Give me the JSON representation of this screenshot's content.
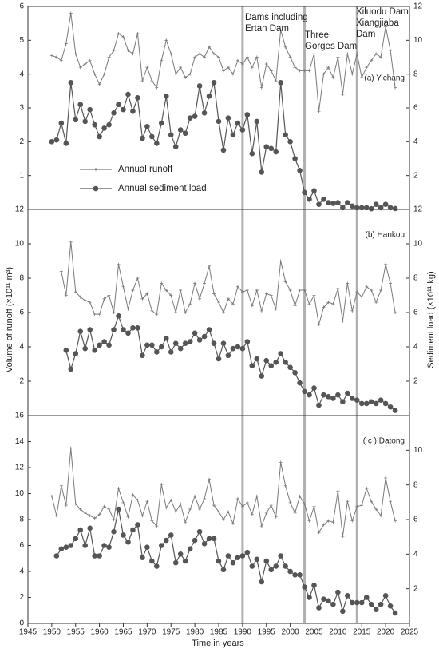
{
  "x_label": "Time in years",
  "y_label": "Volume of runoff (×10¹¹ m³)",
  "y2_label": "Sediment load (×10¹¹ kg)",
  "xlim": [
    1945,
    2025
  ],
  "xticks": [
    1945,
    1950,
    1955,
    1960,
    1965,
    1970,
    1975,
    1980,
    1985,
    1990,
    1995,
    2000,
    2005,
    2010,
    2015,
    2020,
    2025
  ],
  "dam_lines": [
    {
      "x": 1990,
      "label": [
        "Dams including",
        "Ertan Dam"
      ],
      "color": "#b0b0b0"
    },
    {
      "x": 2003,
      "label": [
        "Three",
        "Gorges Dam"
      ],
      "color": "#b0b0b0"
    },
    {
      "x": 2014,
      "label": [
        "Xiluodu Dam",
        "Xiangjiaba",
        "Dam"
      ],
      "color": "#b0b0b0"
    }
  ],
  "chart_data": [
    {
      "type": "line",
      "title": "(a) Yichang",
      "ylim": [
        0,
        6
      ],
      "yticks": [
        1,
        2,
        3,
        4,
        5,
        6
      ],
      "y2lim": [
        0,
        12
      ],
      "y2ticks": [
        2,
        4,
        6,
        8,
        10,
        12
      ],
      "legend": "lower-left",
      "series": [
        {
          "name": "Annual runoff",
          "color": "#7a7a7a",
          "marker": "plus",
          "x": [
            1950,
            1951,
            1952,
            1953,
            1954,
            1955,
            1956,
            1957,
            1958,
            1959,
            1960,
            1961,
            1962,
            1963,
            1964,
            1965,
            1966,
            1967,
            1968,
            1969,
            1970,
            1971,
            1972,
            1973,
            1974,
            1975,
            1976,
            1977,
            1978,
            1979,
            1980,
            1981,
            1982,
            1983,
            1984,
            1985,
            1986,
            1987,
            1988,
            1989,
            1990,
            1991,
            1992,
            1993,
            1994,
            1995,
            1996,
            1997,
            1998,
            1999,
            2000,
            2001,
            2002,
            2003,
            2004,
            2005,
            2006,
            2007,
            2008,
            2009,
            2010,
            2011,
            2012,
            2013,
            2014,
            2015,
            2016,
            2017,
            2018,
            2019,
            2020,
            2021,
            2022
          ],
          "values": [
            4.55,
            4.5,
            4.4,
            4.9,
            5.8,
            4.6,
            4.2,
            4.3,
            4.4,
            4.0,
            3.7,
            4.0,
            4.5,
            4.7,
            5.2,
            5.1,
            4.7,
            4.6,
            5.2,
            3.8,
            4.2,
            3.8,
            3.6,
            4.4,
            5.0,
            4.6,
            4.0,
            4.2,
            3.9,
            4.0,
            4.5,
            4.6,
            4.5,
            4.8,
            4.6,
            4.5,
            4.1,
            4.2,
            4.0,
            4.4,
            4.3,
            4.5,
            4.2,
            4.5,
            3.6,
            4.3,
            4.1,
            3.8,
            5.3,
            4.8,
            4.5,
            4.2,
            4.1,
            4.1,
            4.1,
            4.6,
            2.9,
            4.0,
            4.2,
            3.9,
            4.5,
            3.4,
            4.6,
            4.0,
            4.6,
            3.9,
            4.2,
            4.4,
            4.6,
            4.5,
            5.4,
            4.7,
            3.6
          ]
        },
        {
          "name": "Annual sediment load",
          "color": "#555555",
          "marker": "circle",
          "axis": "y2",
          "x": [
            1950,
            1951,
            1952,
            1953,
            1954,
            1955,
            1956,
            1957,
            1958,
            1959,
            1960,
            1961,
            1962,
            1963,
            1964,
            1965,
            1966,
            1967,
            1968,
            1969,
            1970,
            1971,
            1972,
            1973,
            1974,
            1975,
            1976,
            1977,
            1978,
            1979,
            1980,
            1981,
            1982,
            1983,
            1984,
            1985,
            1986,
            1987,
            1988,
            1989,
            1990,
            1991,
            1992,
            1993,
            1994,
            1995,
            1996,
            1997,
            1998,
            1999,
            2000,
            2001,
            2002,
            2003,
            2004,
            2005,
            2006,
            2007,
            2008,
            2009,
            2010,
            2011,
            2012,
            2013,
            2014,
            2015,
            2016,
            2017,
            2018,
            2019,
            2020,
            2021,
            2022
          ],
          "values": [
            4.0,
            4.1,
            5.1,
            3.9,
            7.5,
            5.3,
            6.2,
            5.2,
            5.9,
            5.0,
            4.3,
            4.8,
            5.0,
            5.7,
            6.2,
            5.9,
            6.8,
            5.8,
            6.6,
            4.2,
            4.9,
            4.3,
            3.9,
            5.1,
            6.7,
            4.4,
            3.7,
            4.7,
            4.5,
            5.4,
            5.5,
            7.3,
            5.7,
            6.7,
            7.5,
            5.2,
            3.5,
            5.4,
            4.4,
            5.1,
            4.7,
            5.6,
            3.3,
            5.2,
            2.2,
            3.7,
            3.6,
            3.4,
            7.5,
            4.4,
            4.0,
            3.0,
            2.3,
            1.0,
            0.6,
            1.1,
            0.3,
            0.6,
            0.4,
            0.35,
            0.4,
            0.1,
            0.4,
            0.2,
            0.1,
            0.1,
            0.1,
            0.04,
            0.3,
            0.1,
            0.3,
            0.1,
            0.05
          ]
        }
      ]
    },
    {
      "type": "line",
      "title": "(b) Hankou",
      "ylim": [
        0,
        12
      ],
      "yticks": [
        2,
        4,
        6,
        8,
        10,
        12
      ],
      "y2lim": [
        0,
        12
      ],
      "y2ticks": [
        2,
        4,
        6,
        8,
        10,
        12
      ],
      "series": [
        {
          "color": "#7a7a7a",
          "marker": "plus",
          "x": [
            1952,
            1953,
            1954,
            1955,
            1956,
            1957,
            1958,
            1959,
            1960,
            1961,
            1962,
            1963,
            1964,
            1965,
            1966,
            1967,
            1968,
            1969,
            1970,
            1971,
            1972,
            1973,
            1974,
            1975,
            1976,
            1977,
            1978,
            1979,
            1980,
            1981,
            1982,
            1983,
            1984,
            1985,
            1986,
            1987,
            1988,
            1989,
            1990,
            1991,
            1992,
            1993,
            1994,
            1995,
            1996,
            1997,
            1998,
            1999,
            2000,
            2001,
            2002,
            2003,
            2004,
            2005,
            2006,
            2007,
            2008,
            2009,
            2010,
            2011,
            2012,
            2013,
            2014,
            2015,
            2016,
            2017,
            2018,
            2019,
            2020,
            2021,
            2022
          ],
          "values": [
            8.4,
            7.0,
            10.1,
            7.2,
            6.9,
            6.7,
            6.6,
            5.9,
            5.9,
            6.8,
            7.0,
            6.0,
            8.8,
            7.5,
            6.2,
            7.3,
            8.0,
            6.8,
            7.1,
            6.1,
            5.9,
            7.7,
            7.3,
            7.0,
            6.0,
            7.3,
            6.0,
            6.5,
            7.7,
            6.8,
            7.7,
            8.7,
            7.1,
            6.6,
            6.0,
            6.8,
            6.5,
            7.5,
            7.2,
            7.3,
            6.4,
            7.3,
            6.1,
            7.1,
            7.0,
            6.2,
            9.0,
            7.8,
            7.3,
            6.4,
            7.3,
            7.3,
            6.5,
            7.0,
            5.3,
            6.3,
            6.6,
            6.5,
            7.4,
            5.5,
            7.7,
            6.1,
            7.2,
            6.9,
            7.5,
            7.3,
            6.6,
            7.3,
            8.8,
            7.7,
            6.0
          ]
        },
        {
          "color": "#555555",
          "marker": "circle",
          "axis": "y2",
          "x": [
            1953,
            1954,
            1955,
            1956,
            1957,
            1958,
            1959,
            1960,
            1961,
            1962,
            1963,
            1964,
            1965,
            1966,
            1967,
            1968,
            1969,
            1970,
            1971,
            1972,
            1973,
            1974,
            1975,
            1976,
            1977,
            1978,
            1979,
            1980,
            1981,
            1982,
            1983,
            1984,
            1985,
            1986,
            1987,
            1988,
            1989,
            1990,
            1991,
            1992,
            1993,
            1994,
            1995,
            1996,
            1997,
            1998,
            1999,
            2000,
            2001,
            2002,
            2003,
            2004,
            2005,
            2006,
            2007,
            2008,
            2009,
            2010,
            2011,
            2012,
            2013,
            2014,
            2015,
            2016,
            2017,
            2018,
            2019,
            2020,
            2021,
            2022
          ],
          "values": [
            3.8,
            2.7,
            3.6,
            4.9,
            3.9,
            5.0,
            3.8,
            4.1,
            4.3,
            4.1,
            5.0,
            5.8,
            5.0,
            4.8,
            5.1,
            5.1,
            3.5,
            4.1,
            4.1,
            3.7,
            4.0,
            4.5,
            3.7,
            4.2,
            3.9,
            4.2,
            4.3,
            4.8,
            4.4,
            4.6,
            5.0,
            4.2,
            3.3,
            4.2,
            3.5,
            3.9,
            4.0,
            3.9,
            4.3,
            2.9,
            3.3,
            2.3,
            3.2,
            2.9,
            3.1,
            3.6,
            3.1,
            2.8,
            2.5,
            1.9,
            1.4,
            1.2,
            1.6,
            0.6,
            1.2,
            1.1,
            1.0,
            1.2,
            0.8,
            1.3,
            1.0,
            0.9,
            0.7,
            0.7,
            0.8,
            0.7,
            0.9,
            0.7,
            0.5,
            0.3
          ]
        }
      ]
    },
    {
      "type": "line",
      "title": "( c ) Datong",
      "ylim": [
        0,
        16
      ],
      "yticks": [
        0,
        2,
        4,
        6,
        8,
        10,
        12,
        14,
        16
      ],
      "y2lim": [
        0,
        12
      ],
      "y2ticks": [
        2,
        4,
        6,
        8,
        10
      ],
      "series": [
        {
          "color": "#7a7a7a",
          "marker": "plus",
          "x": [
            1950,
            1951,
            1952,
            1953,
            1954,
            1955,
            1956,
            1957,
            1958,
            1959,
            1960,
            1961,
            1962,
            1963,
            1964,
            1965,
            1966,
            1967,
            1968,
            1969,
            1970,
            1971,
            1972,
            1973,
            1974,
            1975,
            1976,
            1977,
            1978,
            1979,
            1980,
            1981,
            1982,
            1983,
            1984,
            1985,
            1986,
            1987,
            1988,
            1989,
            1990,
            1991,
            1992,
            1993,
            1994,
            1995,
            1996,
            1997,
            1998,
            1999,
            2000,
            2001,
            2002,
            2003,
            2004,
            2005,
            2006,
            2007,
            2008,
            2009,
            2010,
            2011,
            2012,
            2013,
            2014,
            2015,
            2016,
            2017,
            2018,
            2019,
            2020,
            2021,
            2022
          ],
          "values": [
            9.8,
            8.3,
            10.6,
            9.1,
            13.5,
            9.2,
            8.8,
            8.5,
            8.3,
            8.1,
            8.4,
            9.0,
            8.8,
            8.0,
            10.4,
            9.3,
            8.2,
            9.9,
            9.5,
            8.3,
            9.4,
            7.9,
            7.5,
            10.7,
            8.9,
            9.5,
            8.6,
            9.2,
            7.8,
            8.8,
            9.8,
            8.8,
            9.6,
            11.1,
            9.1,
            8.6,
            8.0,
            8.6,
            7.7,
            9.6,
            9.0,
            9.3,
            8.4,
            9.8,
            7.5,
            8.5,
            9.1,
            8.2,
            12.4,
            10.6,
            9.3,
            8.5,
            9.8,
            9.2,
            7.9,
            9.0,
            7.0,
            7.6,
            7.9,
            7.8,
            10.2,
            6.7,
            9.4,
            7.9,
            9.0,
            9.1,
            10.4,
            9.4,
            8.8,
            8.3,
            11.2,
            9.4,
            7.9
          ]
        },
        {
          "color": "#555555",
          "marker": "circle",
          "axis": "y2",
          "x": [
            1951,
            1952,
            1953,
            1954,
            1955,
            1956,
            1957,
            1958,
            1959,
            1960,
            1961,
            1962,
            1963,
            1964,
            1965,
            1966,
            1967,
            1968,
            1969,
            1970,
            1971,
            1972,
            1973,
            1974,
            1975,
            1976,
            1977,
            1978,
            1979,
            1980,
            1981,
            1982,
            1983,
            1984,
            1985,
            1986,
            1987,
            1988,
            1989,
            1990,
            1991,
            1992,
            1993,
            1994,
            1995,
            1996,
            1997,
            1998,
            1999,
            2000,
            2001,
            2002,
            2003,
            2004,
            2005,
            2006,
            2007,
            2008,
            2009,
            2010,
            2011,
            2012,
            2013,
            2014,
            2015,
            2016,
            2017,
            2018,
            2019,
            2020,
            2021,
            2022
          ],
          "values": [
            3.9,
            4.3,
            4.4,
            4.5,
            4.9,
            5.4,
            4.5,
            5.5,
            3.9,
            3.9,
            4.5,
            4.4,
            5.3,
            6.6,
            5.1,
            4.7,
            5.4,
            5.7,
            3.8,
            4.4,
            3.6,
            3.3,
            4.5,
            4.8,
            5.1,
            3.5,
            4.0,
            3.6,
            4.3,
            4.8,
            5.3,
            4.6,
            4.9,
            4.9,
            3.6,
            3.1,
            3.9,
            3.5,
            3.8,
            3.9,
            4.1,
            3.3,
            3.7,
            2.4,
            3.6,
            3.1,
            3.3,
            3.9,
            3.3,
            3.0,
            2.8,
            2.8,
            2.1,
            1.5,
            2.2,
            0.9,
            1.4,
            1.3,
            1.1,
            1.8,
            0.7,
            1.6,
            1.2,
            1.2,
            1.2,
            1.5,
            1.1,
            0.8,
            1.1,
            1.6,
            1.0,
            0.6
          ]
        }
      ]
    }
  ]
}
